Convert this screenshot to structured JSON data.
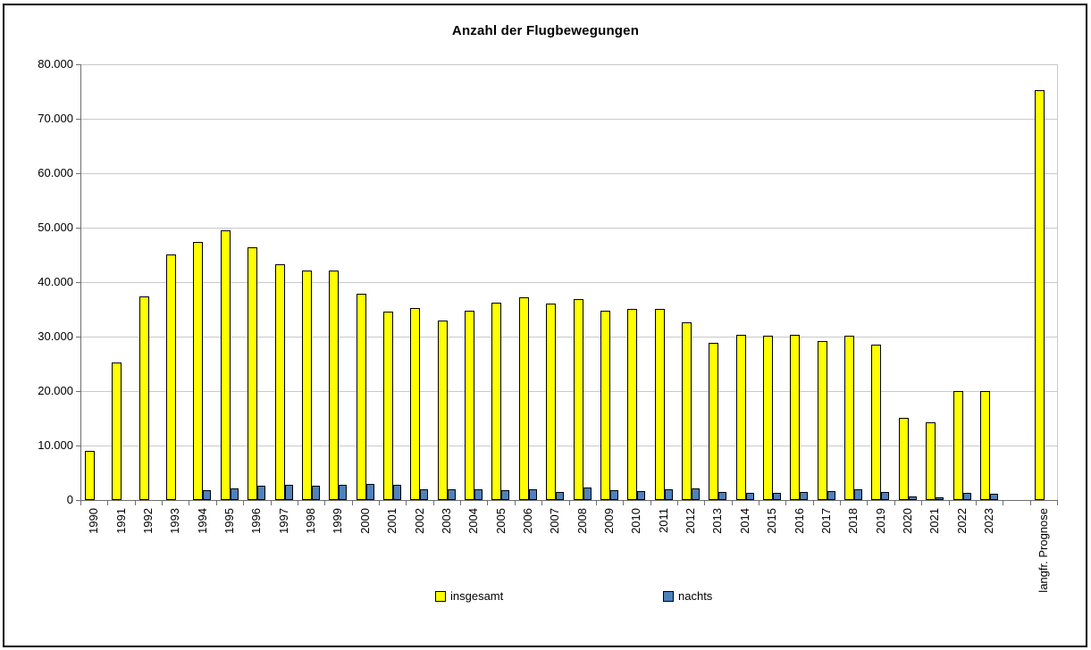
{
  "window": {
    "background": "#ffffff",
    "border_color": "#000000"
  },
  "chart_data": {
    "type": "bar",
    "title": "Anzahl der Flugbewegungen",
    "xlabel": "",
    "ylabel": "",
    "categories": [
      "1990",
      "1991",
      "1992",
      "1993",
      "1994",
      "1995",
      "1996",
      "1997",
      "1998",
      "1999",
      "2000",
      "2001",
      "2002",
      "2003",
      "2004",
      "2005",
      "2006",
      "2007",
      "2008",
      "2009",
      "2010",
      "2011",
      "2012",
      "2013",
      "2014",
      "2015",
      "2016",
      "2017",
      "2018",
      "2019",
      "2020",
      "2021",
      "2022",
      "2023",
      "",
      "langfr. Prognose"
    ],
    "series": [
      {
        "name": "insgesamt",
        "color": "#ffff00",
        "border_color": "#000000",
        "values": [
          9000,
          25300,
          37400,
          45100,
          47400,
          49500,
          46400,
          43300,
          42100,
          42100,
          37900,
          34600,
          35200,
          32900,
          34700,
          36200,
          37200,
          36000,
          36900,
          34800,
          35000,
          35100,
          32600,
          28800,
          30300,
          30100,
          30300,
          29200,
          30200,
          28500,
          15100,
          14200,
          20000,
          20000,
          null,
          75200
        ]
      },
      {
        "name": "nachts",
        "color": "#4f81bd",
        "border_color": "#000000",
        "values": [
          null,
          null,
          null,
          null,
          1800,
          2100,
          2600,
          2800,
          2700,
          2800,
          2900,
          2800,
          1900,
          1900,
          2000,
          1800,
          2000,
          1500,
          2300,
          1800,
          1700,
          1900,
          2100,
          1500,
          1300,
          1300,
          1400,
          1700,
          2000,
          1400,
          600,
          500,
          1300,
          1200,
          null,
          null
        ]
      }
    ],
    "ylim": [
      0,
      80000
    ],
    "ytick_step": 10000,
    "ytick_labels": [
      "0",
      "10.000",
      "20.000",
      "30.000",
      "40.000",
      "50.000",
      "60.000",
      "70.000",
      "80.000"
    ],
    "grid": true,
    "gridline_color": "#c9c9c9",
    "axis_color": "#6e6e6e",
    "legend_position": "bottom",
    "number_format": "de-DE"
  },
  "legend": {
    "items": [
      {
        "label": "insgesamt",
        "color": "#ffff00"
      },
      {
        "label": "nachts",
        "color": "#4f81bd"
      }
    ]
  }
}
